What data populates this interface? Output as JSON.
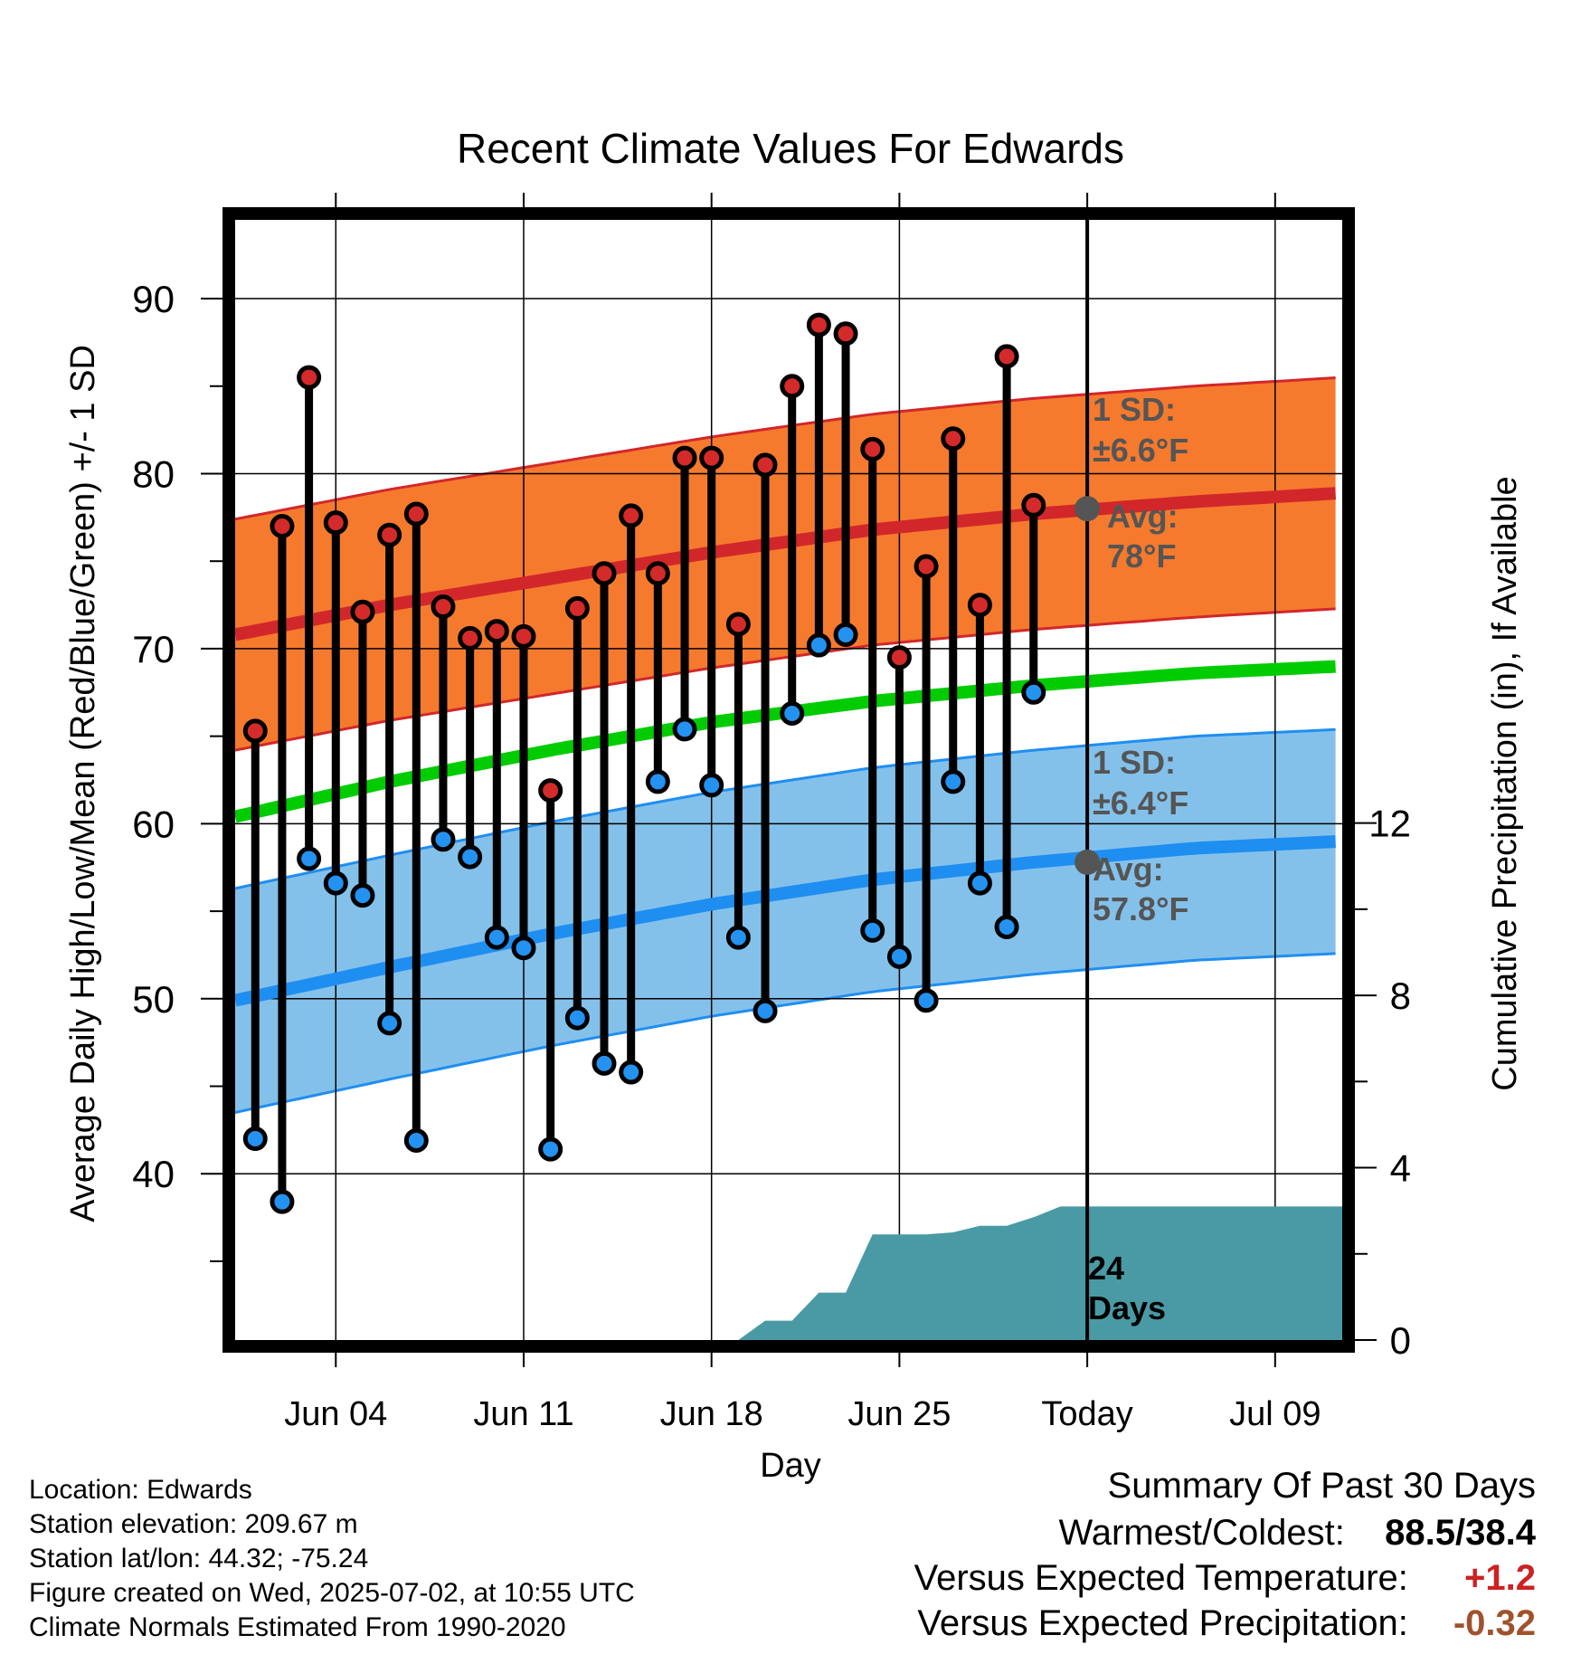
{
  "chart_data": {
    "type": "line",
    "title": "Recent Climate Values For Edwards",
    "xlabel": "Day",
    "ylabel_left": "Average Daily High/Low/Mean (Red/Blue/Green) +/- 1 SD",
    "ylabel_right": "Cumulative Precipitation (in), If Available",
    "x_ticks": [
      {
        "day": 4,
        "label": "Jun 04"
      },
      {
        "day": 11,
        "label": "Jun 11"
      },
      {
        "day": 18,
        "label": "Jun 18"
      },
      {
        "day": 25,
        "label": "Jun 25"
      },
      {
        "day": 32,
        "label": "Today"
      },
      {
        "day": 39,
        "label": "Jul 09"
      }
    ],
    "xlim": [
      0.25,
      41.5
    ],
    "ylim_left": [
      30.5,
      94.5
    ],
    "y_ticks_left": [
      40,
      50,
      60,
      70,
      80,
      90
    ],
    "ylim_right": [
      0,
      26
    ],
    "y_ticks_right": [
      0,
      4,
      8,
      12
    ],
    "highs": [
      65.3,
      77.0,
      85.5,
      77.2,
      72.1,
      76.5,
      77.7,
      72.4,
      70.6,
      71.0,
      70.7,
      61.9,
      72.3,
      74.3,
      77.6,
      74.3,
      80.9,
      80.9,
      71.4,
      80.5,
      85.0,
      88.5,
      88.0,
      81.4,
      69.5,
      74.7,
      82.0,
      72.5,
      86.7,
      78.2
    ],
    "lows": [
      42.0,
      38.4,
      58.0,
      56.6,
      55.9,
      48.6,
      41.9,
      59.1,
      58.1,
      53.5,
      52.9,
      41.4,
      48.9,
      46.3,
      45.8,
      62.4,
      65.4,
      62.2,
      53.5,
      49.3,
      66.3,
      70.2,
      70.8,
      53.9,
      52.4,
      49.9,
      62.4,
      56.6,
      54.1,
      67.5
    ],
    "normal_days": [
      0.25,
      6,
      12,
      18,
      24,
      30,
      36,
      41.5
    ],
    "normal_high": [
      70.8,
      72.5,
      74.0,
      75.5,
      76.8,
      77.7,
      78.4,
      78.9
    ],
    "normal_mean": [
      60.4,
      62.4,
      64.2,
      65.8,
      67.0,
      67.9,
      68.6,
      69.0
    ],
    "normal_low": [
      49.9,
      51.8,
      53.7,
      55.4,
      56.8,
      57.8,
      58.6,
      59.0
    ],
    "sd_high": 6.6,
    "sd_low": 6.4,
    "precip_x": [
      19,
      20,
      21,
      22,
      23,
      24,
      25,
      26,
      27,
      28,
      29,
      30,
      31,
      32,
      41.5
    ],
    "precip_in": [
      0,
      0.45,
      0.45,
      1.1,
      1.1,
      2.45,
      2.45,
      2.45,
      2.5,
      2.65,
      2.65,
      2.85,
      3.1,
      3.1,
      3.1
    ],
    "today_day": 32,
    "today_high_avg": 78.0,
    "today_low_avg": 57.8,
    "annotations": {
      "high_sd": "1 SD:",
      "high_sd_val": "±6.6°F",
      "high_avg": "Avg:",
      "high_avg_val": "78°F",
      "low_sd": "1 SD:",
      "low_sd_val": "±6.4°F",
      "low_avg": "Avg:",
      "low_avg_val": "57.8°F",
      "days_count": "24",
      "days_word": "Days"
    },
    "colors": {
      "high_band": "#f57a2e",
      "high_line": "#d2272a",
      "low_band": "#84c1ea",
      "low_line": "#1f8ef1",
      "mean_line": "#00cc00",
      "precip": "#4a9aa5",
      "high_dot": "#d42a2a",
      "low_dot": "#2492f0",
      "annotation": "#555555"
    }
  },
  "info": {
    "location": "Location: Edwards",
    "elevation": "Station elevation: 209.67 m",
    "latlon": "Station lat/lon: 44.32; -75.24",
    "created": "Figure created on Wed, 2025-07-02, at 10:55 UTC",
    "normals": "Climate Normals Estimated From 1990-2020"
  },
  "summary": {
    "title": "Summary Of Past 30 Days",
    "warm_cold_label": "Warmest/Coldest:",
    "warm_cold_value": "88.5/38.4",
    "temp_label": "Versus Expected Temperature:",
    "temp_value": "+1.2",
    "temp_color": "#cc2222",
    "precip_label": "Versus Expected Precipitation:",
    "precip_value": "-0.32",
    "precip_color": "#a0522d"
  }
}
